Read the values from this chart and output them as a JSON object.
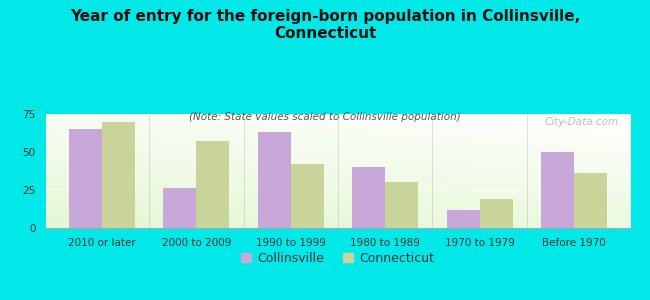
{
  "title": "Year of entry for the foreign-born population in Collinsville,\nConnecticut",
  "subtitle": "(Note: State values scaled to Collinsville population)",
  "categories": [
    "2010 or later",
    "2000 to 2009",
    "1990 to 1999",
    "1980 to 1989",
    "1970 to 1979",
    "Before 1970"
  ],
  "collinsville": [
    65,
    26,
    63,
    40,
    12,
    50
  ],
  "connecticut": [
    70,
    57,
    42,
    30,
    19,
    36
  ],
  "collinsville_color": "#c8a8d8",
  "connecticut_color": "#c8d49a",
  "background_color": "#00e8e8",
  "ylim": [
    0,
    75
  ],
  "yticks": [
    0,
    25,
    50,
    75
  ],
  "bar_width": 0.35,
  "legend_labels": [
    "Collinsville",
    "Connecticut"
  ],
  "watermark": "City-Data.com",
  "title_fontsize": 11,
  "subtitle_fontsize": 7.5,
  "tick_fontsize": 7.5,
  "legend_fontsize": 9
}
